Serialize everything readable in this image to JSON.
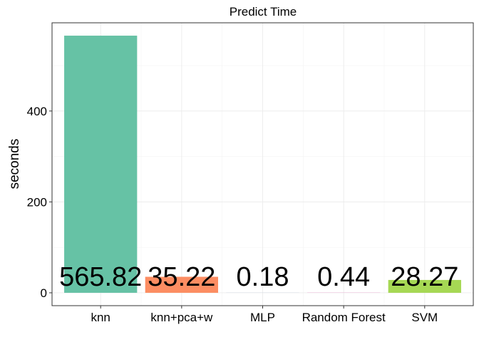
{
  "chart_data": {
    "type": "bar",
    "title": "Predict Time",
    "xlabel": "",
    "ylabel": "seconds",
    "categories": [
      "knn",
      "knn+pca+w",
      "MLP",
      "Random Forest",
      "SVM"
    ],
    "values": [
      565.82,
      35.22,
      0.18,
      0.44,
      28.27
    ],
    "value_labels": [
      "565.82",
      "35.22",
      "0.18",
      "0.44",
      "28.27"
    ],
    "colors": [
      "#66c2a5",
      "#fc8d62",
      "#8da0cb",
      "#e78ac3",
      "#a6d854"
    ],
    "ylim": [
      -28.3,
      594.1
    ],
    "yticks": [
      0,
      200,
      400
    ],
    "ytick_labels": [
      "0",
      "200",
      "400"
    ],
    "yminor_ticks": [
      100,
      300,
      500
    ],
    "grid": true,
    "legend": "none"
  }
}
